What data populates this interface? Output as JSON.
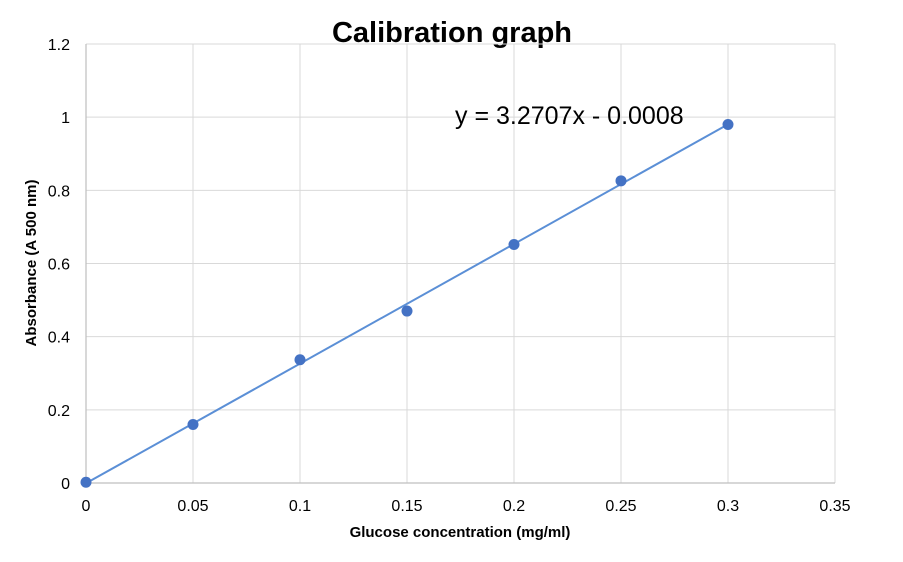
{
  "chart_data": {
    "type": "scatter",
    "title": "Calibration graph",
    "xlabel": "Glucose concentration (mg/ml)",
    "ylabel": "Absorbance (A 500 nm)",
    "xlim": [
      0,
      0.35
    ],
    "ylim": [
      0,
      1.2
    ],
    "x_ticks": [
      "0",
      "0.05",
      "0.1",
      "0.15",
      "0.2",
      "0.25",
      "0.3",
      "0.35"
    ],
    "y_ticks": [
      "0",
      "0.2",
      "0.4",
      "0.6",
      "0.8",
      "1",
      "1.2"
    ],
    "grid": true,
    "series": [
      {
        "x": [
          0,
          0.05,
          0.1,
          0.15,
          0.2,
          0.25,
          0.3
        ],
        "y": [
          0.002,
          0.16,
          0.337,
          0.47,
          0.652,
          0.826,
          0.98
        ]
      }
    ],
    "trendline": {
      "type": "linear",
      "slope": 3.2707,
      "intercept": -0.0008,
      "x_range": [
        0,
        0.3
      ],
      "equation_label": "y = 3.2707x - 0.0008"
    },
    "colors": {
      "marker": "#4472c4",
      "trendline": "#5b8fd6",
      "grid": "#d9d9d9",
      "axis": "#bfbfbf",
      "text": "#000000"
    }
  }
}
